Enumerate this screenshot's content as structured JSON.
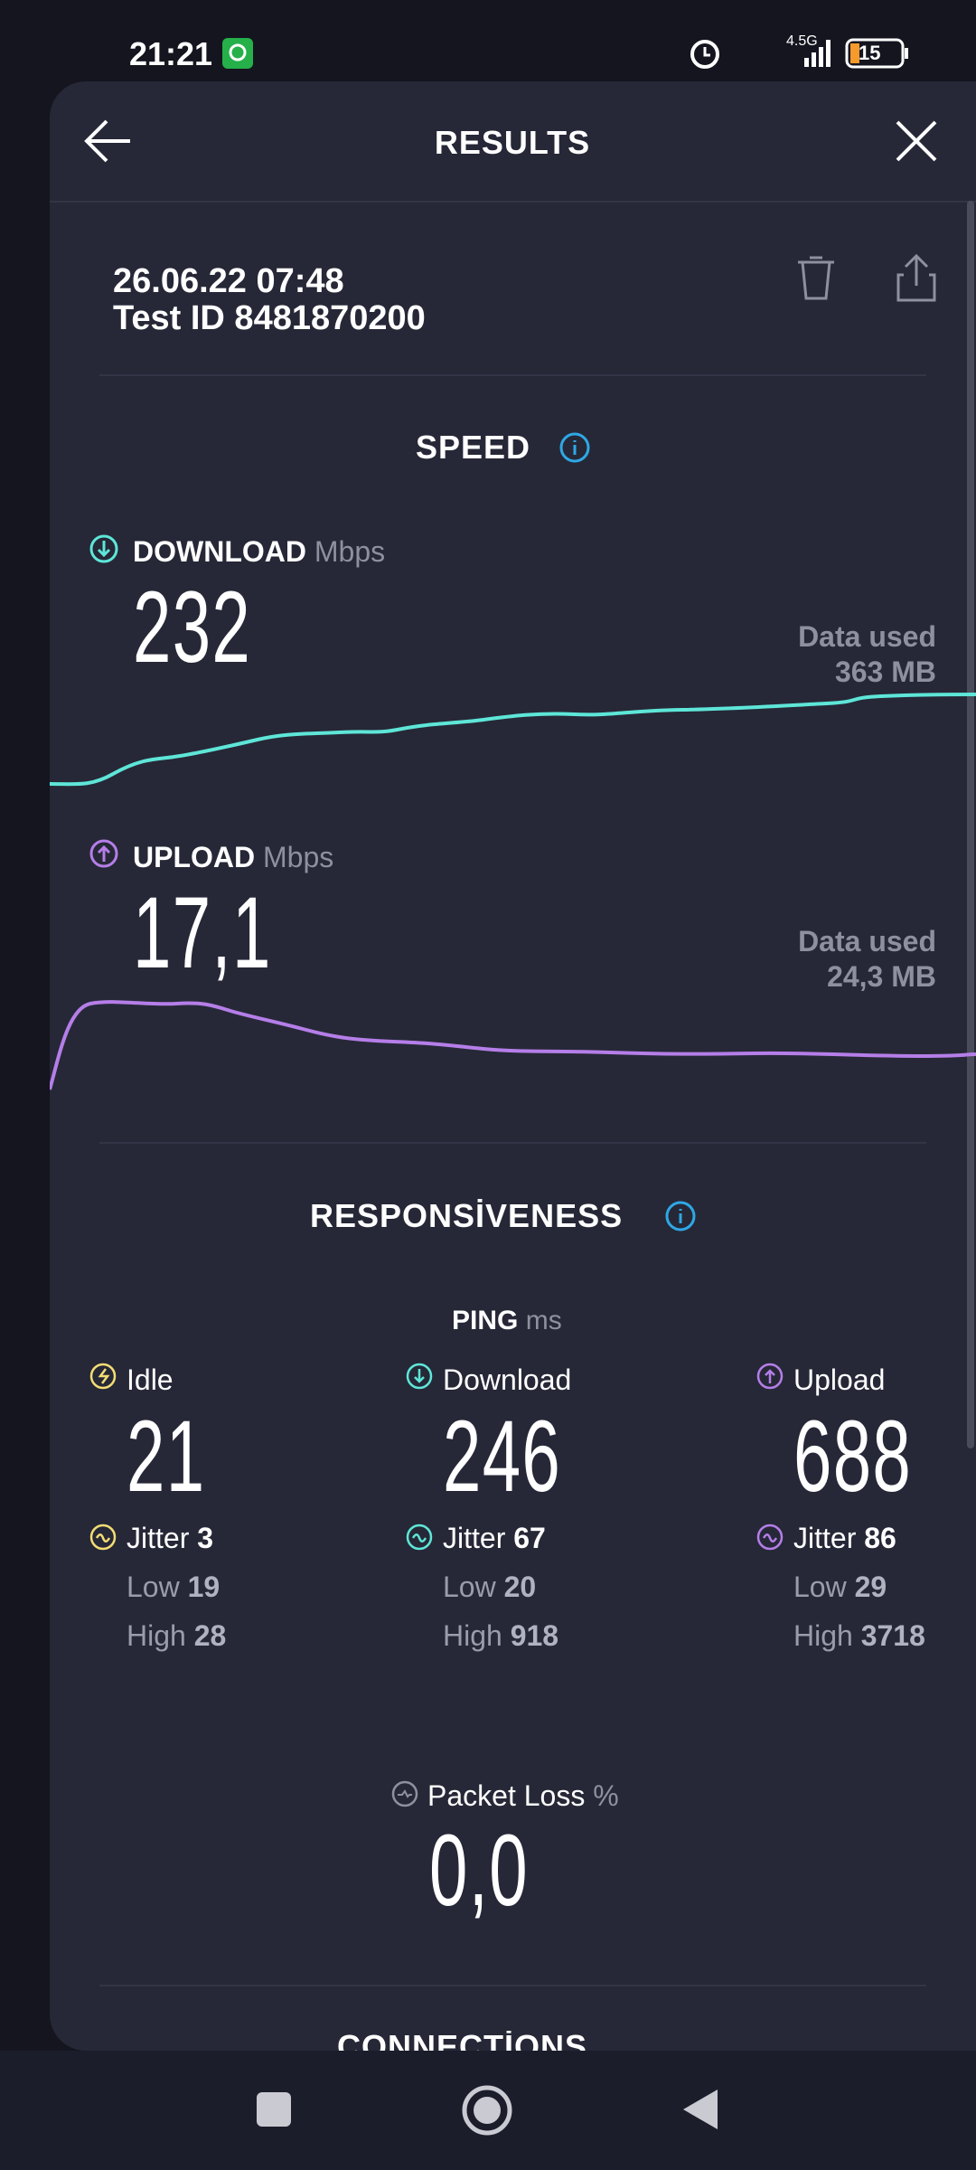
{
  "status_bar": {
    "time": "21:21",
    "network": "4.5G",
    "battery": "15"
  },
  "header": {
    "title": "RESULTS"
  },
  "test": {
    "date": "26.06.22 07:48",
    "id": "Test ID 8481870200"
  },
  "speed": {
    "title": "SPEED",
    "download": {
      "label": "DOWNLOAD",
      "unit": "Mbps",
      "value": "232",
      "data_label": "Data used",
      "data_value": "363 MB"
    },
    "upload": {
      "label": "UPLOAD",
      "unit": "Mbps",
      "value": "17,1",
      "data_label": "Data used",
      "data_value": "24,3 MB"
    }
  },
  "responsiveness": {
    "title": "RESPONSİVENESS",
    "ping_label": "PING",
    "ping_unit": "ms",
    "columns": [
      {
        "label": "Idle",
        "value": "21",
        "jitter_label": "Jitter",
        "jitter": "3",
        "low_label": "Low",
        "low": "19",
        "high_label": "High",
        "high": "28"
      },
      {
        "label": "Download",
        "value": "246",
        "jitter_label": "Jitter",
        "jitter": "67",
        "low_label": "Low",
        "low": "20",
        "high_label": "High",
        "high": "918"
      },
      {
        "label": "Upload",
        "value": "688",
        "jitter_label": "Jitter",
        "jitter": "86",
        "low_label": "Low",
        "low": "29",
        "high_label": "High",
        "high": "3718"
      }
    ],
    "packet_loss": {
      "label": "Packet Loss",
      "unit": "%",
      "value": "0,0"
    }
  },
  "connections": {
    "title": "CONNECTİONS"
  }
}
